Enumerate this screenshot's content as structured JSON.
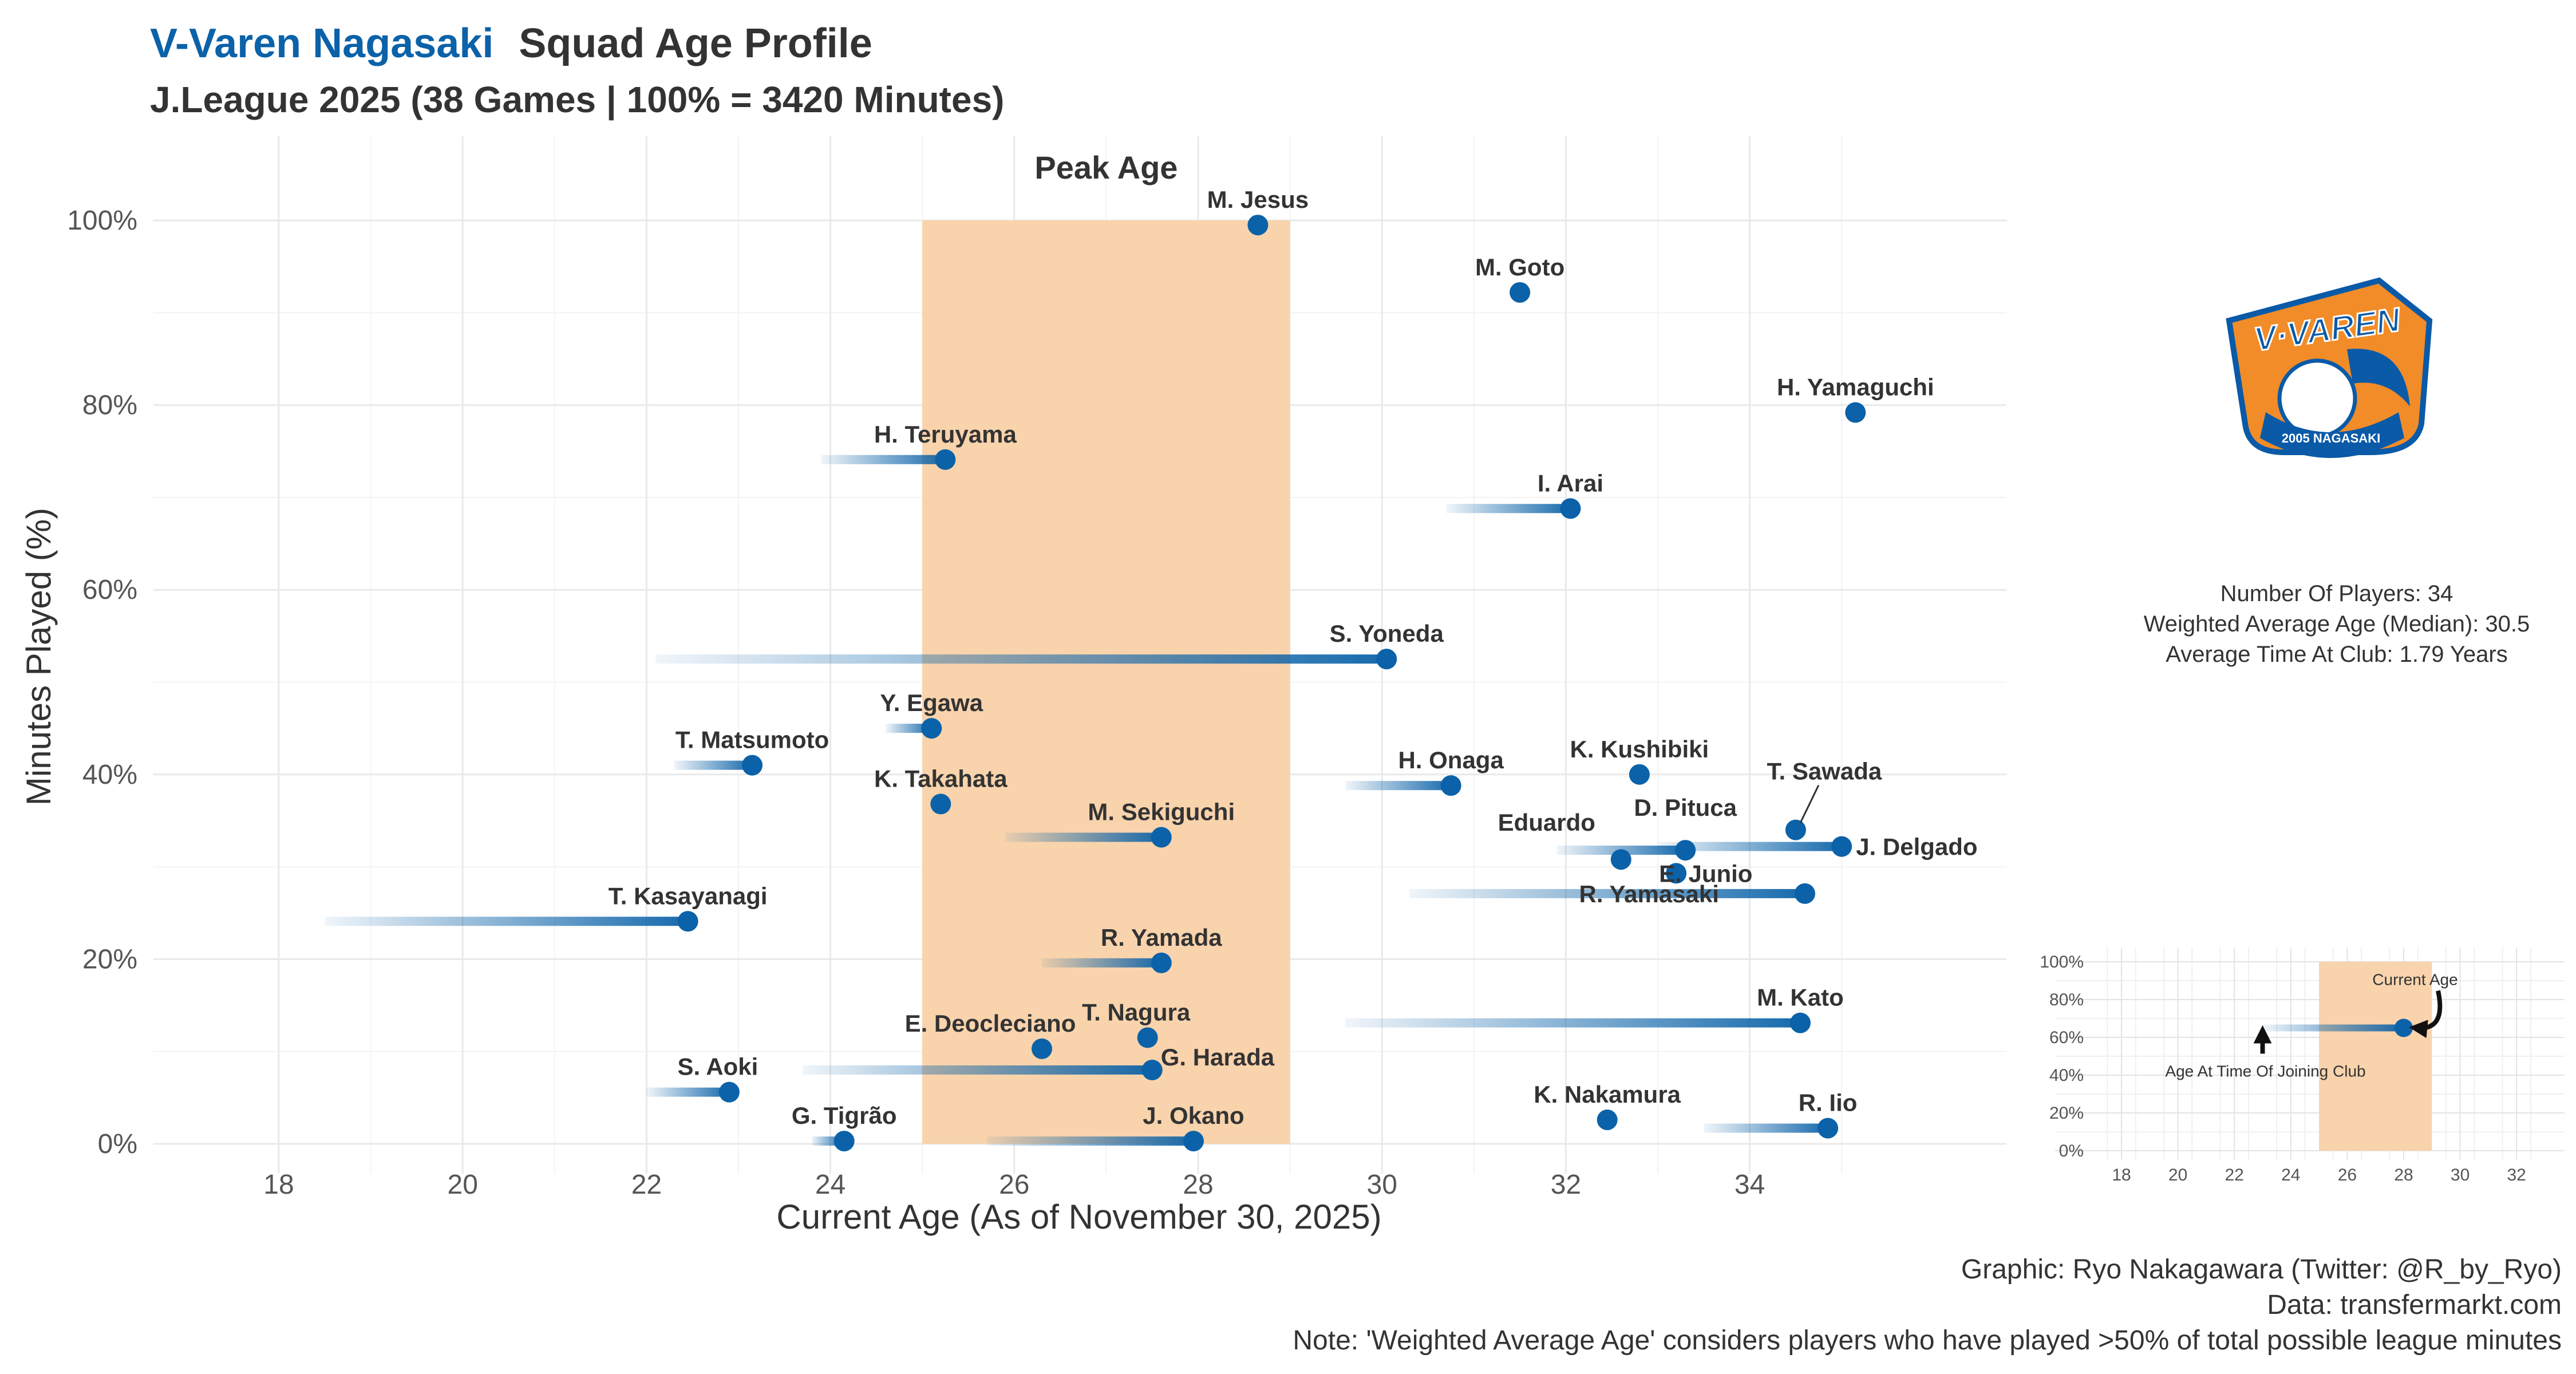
{
  "header": {
    "team": "V-Varen Nagasaki",
    "title_rest": "Squad Age Profile",
    "subtitle": "J.League 2025 (38 Games | 100% = 3420 Minutes)"
  },
  "colors": {
    "accent": "#0b62a8",
    "point": "#0b62a8",
    "peak_band": "#f8d3ac",
    "grid": "#e9e9e9",
    "text": "#333333",
    "logo_orange": "#f28c28",
    "logo_blue": "#0a5aa8"
  },
  "chart_data": {
    "type": "scatter",
    "xlabel": "Current Age (As of November 30, 2025)",
    "ylabel": "Minutes Played (%)",
    "xlim": [
      16.8,
      36.8
    ],
    "ylim": [
      0,
      100
    ],
    "x_ticks": [
      "18",
      "20",
      "22",
      "24",
      "26",
      "28",
      "30",
      "32",
      "34"
    ],
    "y_ticks": [
      "0%",
      "20%",
      "40%",
      "60%",
      "80%",
      "100%"
    ],
    "peak_band": {
      "label": "Peak Age",
      "from": 25,
      "to": 29
    },
    "players": [
      {
        "name": "M. Jesus",
        "age": 28.65,
        "minutes_pct": 99.5,
        "joined_age": null
      },
      {
        "name": "M. Goto",
        "age": 31.5,
        "minutes_pct": 92.2,
        "joined_age": null
      },
      {
        "name": "H. Yamaguchi",
        "age": 35.15,
        "minutes_pct": 79.2,
        "joined_age": null
      },
      {
        "name": "H. Teruyama",
        "age": 25.25,
        "minutes_pct": 74.1,
        "joined_age": 23.9
      },
      {
        "name": "I. Arai",
        "age": 32.05,
        "minutes_pct": 68.8,
        "joined_age": 30.7
      },
      {
        "name": "S. Yoneda",
        "age": 30.05,
        "minutes_pct": 52.5,
        "joined_age": 22.1
      },
      {
        "name": "Y. Egawa",
        "age": 25.1,
        "minutes_pct": 45.0,
        "joined_age": 24.6
      },
      {
        "name": "T. Matsumoto",
        "age": 23.15,
        "minutes_pct": 41.0,
        "joined_age": 22.3
      },
      {
        "name": "K. Kushibiki",
        "age": 32.8,
        "minutes_pct": 40.0,
        "joined_age": null
      },
      {
        "name": "H. Onaga",
        "age": 30.75,
        "minutes_pct": 38.8,
        "joined_age": 29.6
      },
      {
        "name": "K. Takahata",
        "age": 25.2,
        "minutes_pct": 36.8,
        "joined_age": null
      },
      {
        "name": "T. Sawada",
        "age": 34.5,
        "minutes_pct": 34.0,
        "joined_age": null
      },
      {
        "name": "M. Sekiguchi",
        "age": 27.6,
        "minutes_pct": 33.2,
        "joined_age": 25.9
      },
      {
        "name": "J. Delgado",
        "age": 35.0,
        "minutes_pct": 32.2,
        "joined_age": 33.0
      },
      {
        "name": "D. Pituca",
        "age": 33.3,
        "minutes_pct": 31.8,
        "joined_age": 31.9
      },
      {
        "name": "Eduardo",
        "age": 32.6,
        "minutes_pct": 30.8,
        "joined_age": null
      },
      {
        "name": "E. Junio",
        "age": 33.2,
        "minutes_pct": 29.3,
        "joined_age": null
      },
      {
        "name": "R. Yamasaki",
        "age": 34.6,
        "minutes_pct": 27.1,
        "joined_age": 30.3
      },
      {
        "name": "T. Kasayanagi",
        "age": 22.45,
        "minutes_pct": 24.1,
        "joined_age": 18.5
      },
      {
        "name": "R. Yamada",
        "age": 27.6,
        "minutes_pct": 19.6,
        "joined_age": 26.3
      },
      {
        "name": "M. Kato",
        "age": 34.55,
        "minutes_pct": 13.1,
        "joined_age": 29.6
      },
      {
        "name": "T. Nagura",
        "age": 27.45,
        "minutes_pct": 11.5,
        "joined_age": null
      },
      {
        "name": "E. Deocleciano",
        "age": 26.3,
        "minutes_pct": 10.3,
        "joined_age": null
      },
      {
        "name": "G. Harada",
        "age": 27.5,
        "minutes_pct": 8.0,
        "joined_age": 23.7
      },
      {
        "name": "S. Aoki",
        "age": 22.9,
        "minutes_pct": 5.6,
        "joined_age": 22.0
      },
      {
        "name": "K. Nakamura",
        "age": 32.45,
        "minutes_pct": 2.6,
        "joined_age": null
      },
      {
        "name": "R. Iio",
        "age": 34.85,
        "minutes_pct": 1.7,
        "joined_age": 33.5
      },
      {
        "name": "G. Tigrão",
        "age": 24.15,
        "minutes_pct": 0.3,
        "joined_age": 23.8
      },
      {
        "name": "J. Okano",
        "age": 27.95,
        "minutes_pct": 0.3,
        "joined_age": 25.7
      }
    ]
  },
  "stats": {
    "players": "Number Of Players: 34",
    "weighted_age": "Weighted Average Age (Median): 30.5",
    "time_at_club": "Average Time At Club: 1.79 Years"
  },
  "legend_chart": {
    "x_ticks": [
      "18",
      "20",
      "22",
      "24",
      "26",
      "28",
      "30",
      "32"
    ],
    "y_ticks": [
      "0%",
      "20%",
      "40%",
      "60%",
      "80%",
      "100%"
    ],
    "xlim": [
      17.4,
      33.4
    ],
    "ylim": [
      0,
      100
    ],
    "example_age": 28,
    "example_joined_age": 23,
    "example_minutes_pct": 65,
    "peak_from": 25,
    "peak_to": 29,
    "current_label": "Current Age",
    "joined_label": "Age At Time Of Joining Club"
  },
  "logo": {
    "wordmark": "V·VAREN",
    "ribbon": "2005 NAGASAKI"
  },
  "footer": {
    "credit": "Graphic: Ryo Nakagawara (Twitter: @R_by_Ryo)",
    "source": "Data: transfermarkt.com",
    "note": "Note: 'Weighted Average Age' considers players who have played >50% of total possible league minutes"
  }
}
